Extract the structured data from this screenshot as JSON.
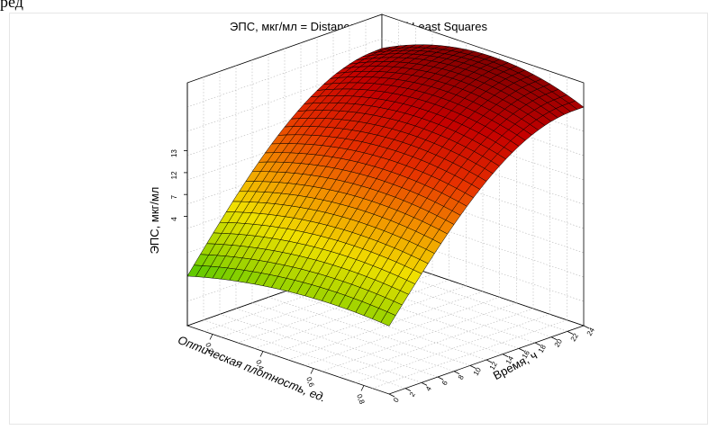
{
  "top_fragment": "ред",
  "chart_data": {
    "type": "surface",
    "title": "ЭПС, мкг/мл = Distance Weighted Least Squares",
    "xlabel": "Оптическая плотность, ед.",
    "ylabel": "Время, ч",
    "zlabel": "ЭПС, мкг/мл",
    "x_ticks": [
      "0,2",
      "0,4",
      "0,6",
      "0,8"
    ],
    "y_ticks": [
      "0",
      "2",
      "4",
      "6",
      "8",
      "10",
      "12",
      "14",
      "16",
      "18",
      "20",
      "22",
      "24"
    ],
    "z_ticks": [
      "4",
      "7",
      "12",
      "13"
    ],
    "x_range": [
      0.2,
      0.8
    ],
    "y_range": [
      0,
      24
    ],
    "z_range": [
      0,
      20
    ],
    "grid": true,
    "colormap": [
      "#1fbf00",
      "#9ad300",
      "#f0e000",
      "#f29000",
      "#e63000",
      "#c40000",
      "#7a0000"
    ]
  }
}
